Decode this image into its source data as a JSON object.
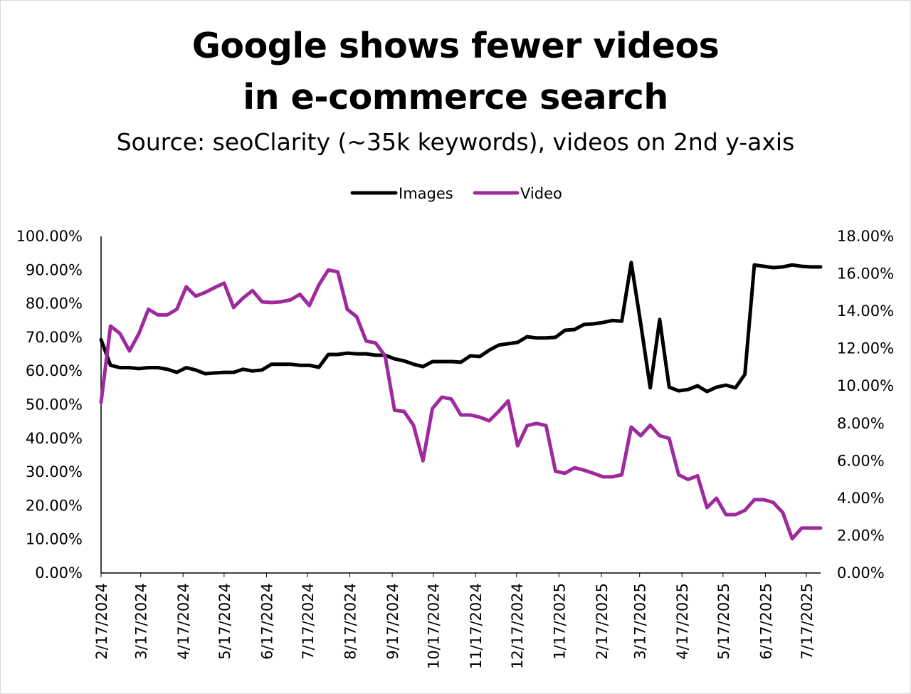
{
  "chart_data": {
    "type": "line",
    "title": [
      "Google shows fewer videos",
      "in e-commerce search"
    ],
    "subtitle": "Source: seoClarity (~35k keywords), videos on 2nd y-axis",
    "legend_position": "top",
    "grid": false,
    "colors": {
      "Images": "#000000",
      "Video": "#9E2A9E"
    },
    "x": [
      "2/17/2024",
      "2/24/2024",
      "3/2/2024",
      "3/9/2024",
      "3/16/2024",
      "3/23/2024",
      "3/30/2024",
      "4/6/2024",
      "4/13/2024",
      "4/20/2024",
      "4/27/2024",
      "5/4/2024",
      "5/11/2024",
      "5/18/2024",
      "5/25/2024",
      "6/1/2024",
      "6/8/2024",
      "6/15/2024",
      "6/22/2024",
      "6/29/2024",
      "7/6/2024",
      "7/13/2024",
      "7/20/2024",
      "7/27/2024",
      "8/3/2024",
      "8/10/2024",
      "8/17/2024",
      "8/24/2024",
      "8/31/2024",
      "9/7/2024",
      "9/14/2024",
      "9/21/2024",
      "9/28/2024",
      "10/5/2024",
      "10/12/2024",
      "10/19/2024",
      "10/26/2024",
      "11/2/2024",
      "11/9/2024",
      "11/16/2024",
      "11/23/2024",
      "11/30/2024",
      "12/7/2024",
      "12/14/2024",
      "12/21/2024",
      "12/28/2024",
      "1/4/2025",
      "1/11/2025",
      "1/18/2025",
      "1/25/2025",
      "2/1/2025",
      "2/8/2025",
      "2/15/2025",
      "2/22/2025",
      "3/1/2025",
      "3/8/2025",
      "3/15/2025",
      "3/22/2025",
      "3/29/2025",
      "4/5/2025",
      "4/12/2025",
      "4/19/2025",
      "4/26/2025",
      "5/3/2025",
      "5/10/2025",
      "5/17/2025",
      "5/24/2025",
      "5/31/2025",
      "6/7/2025",
      "6/14/2025",
      "6/21/2025",
      "6/28/2025",
      "7/5/2025",
      "7/12/2025",
      "7/19/2025",
      "7/26/2025",
      "8/2/2025"
    ],
    "x_ticks": [
      "2/17/2024",
      "3/17/2024",
      "4/17/2024",
      "5/17/2024",
      "6/17/2024",
      "7/17/2024",
      "8/17/2024",
      "9/17/2024",
      "10/17/2024",
      "11/17/2024",
      "12/17/2024",
      "1/17/2025",
      "2/17/2025",
      "3/17/2025",
      "4/17/2025",
      "5/17/2025",
      "6/17/2025",
      "7/17/2025"
    ],
    "y_left": {
      "ticks": [
        "0.00%",
        "10.00%",
        "20.00%",
        "30.00%",
        "40.00%",
        "50.00%",
        "60.00%",
        "70.00%",
        "80.00%",
        "90.00%",
        "100.00%"
      ],
      "ylim": [
        0,
        100
      ]
    },
    "y_right": {
      "ticks": [
        "0.00%",
        "2.00%",
        "4.00%",
        "6.00%",
        "8.00%",
        "10.00%",
        "12.00%",
        "14.00%",
        "16.00%",
        "18.00%"
      ],
      "ylim": [
        0,
        18
      ]
    },
    "series": [
      {
        "name": "Images",
        "axis": "left",
        "values": [
          69.3,
          61.7,
          61.0,
          61.0,
          60.7,
          61.0,
          61.0,
          60.5,
          59.6,
          61.0,
          60.3,
          59.2,
          59.4,
          59.6,
          59.6,
          60.5,
          60.0,
          60.3,
          62.0,
          62.0,
          62.0,
          61.7,
          61.7,
          61.1,
          64.9,
          64.9,
          65.3,
          65.1,
          65.1,
          64.7,
          64.7,
          63.6,
          63.0,
          62.0,
          61.3,
          62.8,
          62.8,
          62.8,
          62.6,
          64.5,
          64.3,
          66.2,
          67.7,
          68.1,
          68.5,
          70.2,
          69.8,
          69.8,
          70.0,
          72.1,
          72.3,
          73.8,
          74.0,
          74.4,
          75.0,
          74.8,
          92.2,
          74.0,
          55.0,
          75.3,
          55.2,
          54.1,
          54.5,
          55.6,
          53.9,
          55.2,
          55.8,
          55.0,
          59.0,
          91.5,
          91.1,
          90.7,
          90.9,
          91.5,
          91.1,
          90.9,
          90.9
        ]
      },
      {
        "name": "Video",
        "axis": "right",
        "values": [
          9.13,
          13.2,
          12.8,
          11.87,
          12.8,
          14.1,
          13.8,
          13.8,
          14.1,
          15.3,
          14.8,
          15.0,
          15.26,
          15.5,
          14.2,
          14.7,
          15.1,
          14.5,
          14.46,
          14.5,
          14.6,
          14.9,
          14.3,
          15.4,
          16.2,
          16.1,
          14.1,
          13.7,
          12.4,
          12.3,
          11.6,
          8.7,
          8.64,
          7.9,
          6.0,
          8.8,
          9.4,
          9.3,
          8.45,
          8.45,
          8.33,
          8.14,
          8.64,
          9.2,
          6.8,
          7.88,
          8.0,
          7.88,
          5.44,
          5.33,
          5.63,
          5.5,
          5.33,
          5.14,
          5.14,
          5.25,
          7.8,
          7.34,
          7.9,
          7.34,
          7.2,
          5.25,
          5.0,
          5.2,
          3.5,
          4.0,
          3.12,
          3.12,
          3.35,
          3.92,
          3.92,
          3.77,
          3.23,
          1.83,
          2.4,
          2.4,
          2.4
        ]
      }
    ]
  }
}
